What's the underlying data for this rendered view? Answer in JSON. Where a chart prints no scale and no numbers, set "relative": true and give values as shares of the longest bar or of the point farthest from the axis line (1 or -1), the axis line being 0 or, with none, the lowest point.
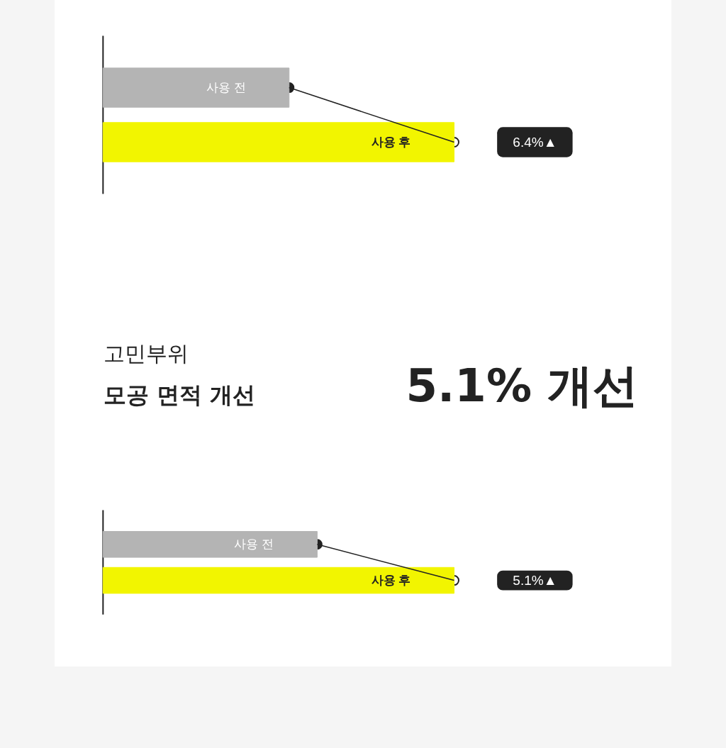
{
  "chart_data": [
    {
      "type": "bar",
      "orientation": "horizontal",
      "relative": true,
      "categories": [
        "사용 전",
        "사용 후"
      ],
      "values": [
        0.53,
        1
      ],
      "colors": [
        "#b4b4b4",
        "#f2f500"
      ],
      "marker": "circle",
      "annotations": [
        "6.4%▲"
      ]
    },
    {
      "type": "bar",
      "orientation": "horizontal",
      "relative": true,
      "title": "고민부위",
      "subtitle": "모공 면적 개선",
      "annotations": [
        "5.1%▲",
        "5.1% 개선"
      ],
      "categories": [
        "사용 전",
        "사용 후"
      ],
      "values": [
        0.61,
        1
      ],
      "colors": [
        "#b4b4b4",
        "#f2f500"
      ],
      "marker": "circle"
    }
  ]
}
